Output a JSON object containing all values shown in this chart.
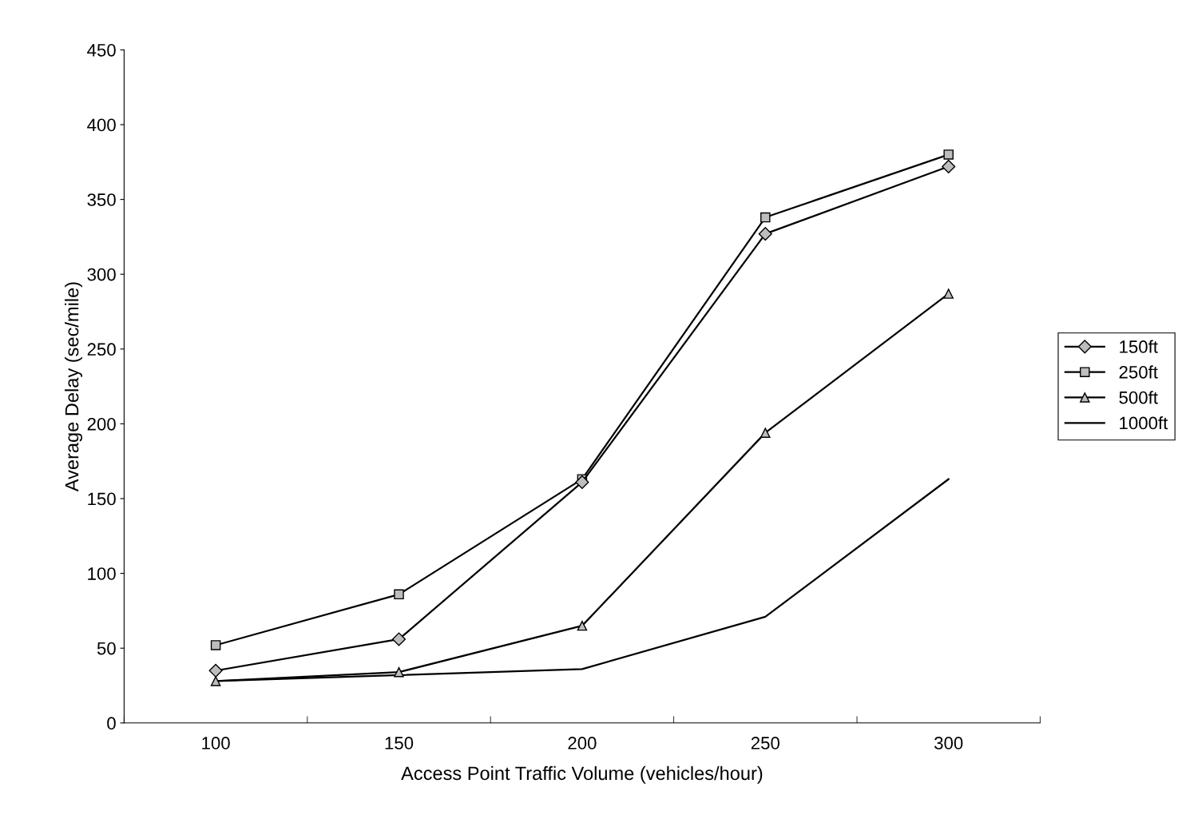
{
  "chart_data": {
    "type": "line",
    "xlabel": "Access Point Traffic Volume (vehicles/hour)",
    "ylabel": "Average Delay (sec/mile)",
    "categories": [
      "100",
      "150",
      "200",
      "250",
      "300"
    ],
    "series": [
      {
        "name": "150ft",
        "color": "#000000",
        "marker": "diamond",
        "values": [
          35,
          56,
          161,
          327,
          372
        ]
      },
      {
        "name": "250ft",
        "color": "#000000",
        "marker": "square",
        "values": [
          52,
          86,
          163,
          338,
          380
        ]
      },
      {
        "name": "500ft",
        "color": "#000000",
        "marker": "triangle",
        "values": [
          28,
          34,
          65,
          194,
          287
        ]
      },
      {
        "name": "1000ft",
        "color": "#000000",
        "marker": "none",
        "values": [
          28,
          32,
          36,
          71,
          163
        ]
      }
    ],
    "ylim": [
      0,
      450
    ],
    "yticks": [
      0,
      50,
      100,
      150,
      200,
      250,
      300,
      350,
      400,
      450
    ],
    "grid": false,
    "legend": "right",
    "line_style": "solid"
  }
}
